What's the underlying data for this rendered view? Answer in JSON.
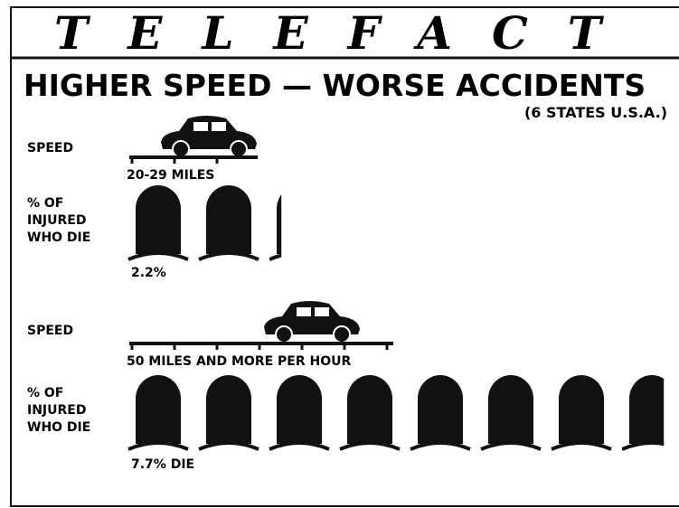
{
  "chart_data": {
    "type": "pictograph",
    "header": "TELEFACT",
    "title": "HIGHER SPEED — WORSE ACCIDENTS",
    "subtitle": "(6 STATES U.S.A.)",
    "speed_label": "SPEED",
    "measure_label": "% OF INJURED WHO DIE",
    "categories": [
      "20-29 MILES",
      "50 MILES AND MORE PER HOUR"
    ],
    "values": [
      2.2,
      7.7
    ],
    "value_labels": [
      "2.2%",
      "7.7% DIE"
    ],
    "color": "#111111"
  }
}
